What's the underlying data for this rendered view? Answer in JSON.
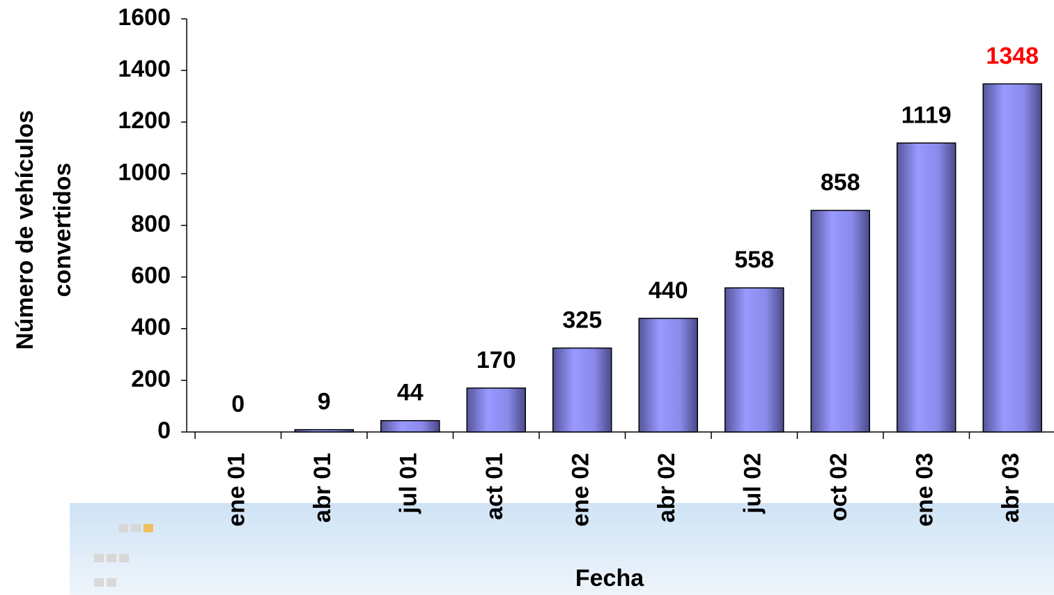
{
  "chart_data": {
    "type": "bar",
    "xlabel": "Fecha",
    "ylabel": [
      "Número de vehículos",
      "convertidos"
    ],
    "categories": [
      "ene 01",
      "abr 01",
      "jul 01",
      "act 01",
      "ene 02",
      "abr 02",
      "jul 02",
      "oct 02",
      "ene 03",
      "abr 03"
    ],
    "values": [
      0,
      9,
      44,
      170,
      325,
      440,
      558,
      858,
      1119,
      1348
    ],
    "value_label_colors": [
      "#000000",
      "#000000",
      "#000000",
      "#000000",
      "#000000",
      "#000000",
      "#000000",
      "#000000",
      "#000000",
      "#ff0000"
    ],
    "color": "#9999ff",
    "ylim": [
      0,
      1600
    ],
    "yticks": [
      0,
      200,
      400,
      600,
      800,
      1000,
      1200,
      1400,
      1600
    ],
    "grid": false
  }
}
